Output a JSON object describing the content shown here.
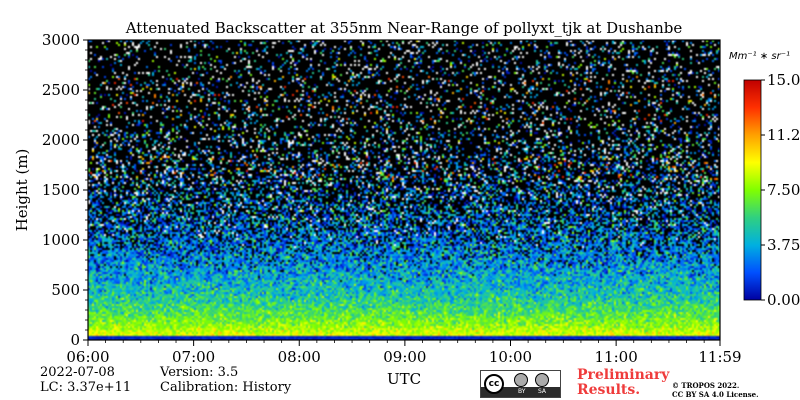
{
  "chart_data": {
    "type": "heatmap",
    "title": "Attenuated Backscatter at 355nm Near-Range of pollyxt_tjk at Dushanbe",
    "xlabel": "UTC",
    "ylabel": "Height (m)",
    "x_ticks": [
      "06:00",
      "07:00",
      "08:00",
      "09:00",
      "10:00",
      "11:00",
      "11:59"
    ],
    "x_range": [
      "06:00",
      "11:59"
    ],
    "y_ticks": [
      0,
      500,
      1000,
      1500,
      2000,
      2500,
      3000
    ],
    "ylim": [
      0,
      3000
    ],
    "colorbar": {
      "unit_label": "Mm⁻¹ ∗ sr⁻¹",
      "ticks": [
        "0.00",
        "3.75",
        "7.50",
        "11.25",
        "15.00"
      ],
      "range": [
        0,
        15
      ],
      "colormap": [
        "#0000a0",
        "#0050ff",
        "#00b0e0",
        "#30d080",
        "#80ff00",
        "#ffff00",
        "#ffa000",
        "#ff3000",
        "#c00000"
      ]
    },
    "profile_description": "High backscatter (~7-9) near surface below 300 m, decreasing with height to noise; scattered red values (10-14) in layers near 1650-1800 m and 2200-2600 m; strong dark-blue band at 0-50 m."
  },
  "footer": {
    "date": "2022-07-08",
    "lc": "LC: 3.37e+11",
    "version": "Version: 3.5",
    "calibration": "Calibration: History",
    "prelim_line1": "Preliminary",
    "prelim_line2": "Results.",
    "copyright_line1": "© TROPOS 2022.",
    "copyright_line2": "CC BY SA 4.0 License.",
    "cc_logo": {
      "mark": "cc",
      "by": "BY",
      "sa": "SA"
    }
  }
}
